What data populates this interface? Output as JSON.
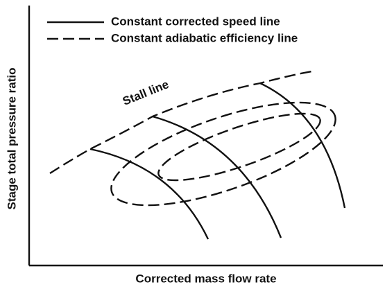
{
  "legend": {
    "items": [
      "Constant corrected speed line",
      "Constant adiabatic efficiency line"
    ]
  },
  "annotation": "Stall line",
  "x_axis_label": "Corrected mass flow rate",
  "y_axis_label": "Stage total pressure ratio"
}
